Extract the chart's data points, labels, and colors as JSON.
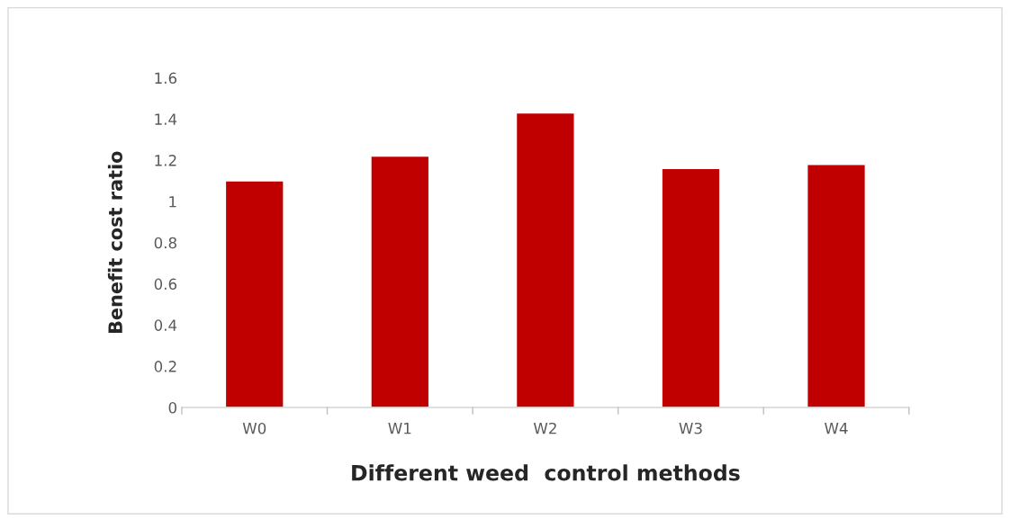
{
  "chart_data": {
    "type": "bar",
    "xlabel": "Different weed  control methods",
    "ylabel": "Benefit cost ratio",
    "categories": [
      "W0",
      "W1",
      "W2",
      "W3",
      "W4"
    ],
    "values": [
      1.1,
      1.22,
      1.43,
      1.16,
      1.18
    ],
    "color": "#c00000",
    "ylim": [
      0,
      1.6
    ],
    "yticks": [
      {
        "value": 0,
        "label": "0"
      },
      0.2,
      0.4,
      0.6,
      0.8,
      {
        "value": 1,
        "label": "1"
      },
      1.2,
      1.4,
      1.6
    ],
    "grid": false
  }
}
